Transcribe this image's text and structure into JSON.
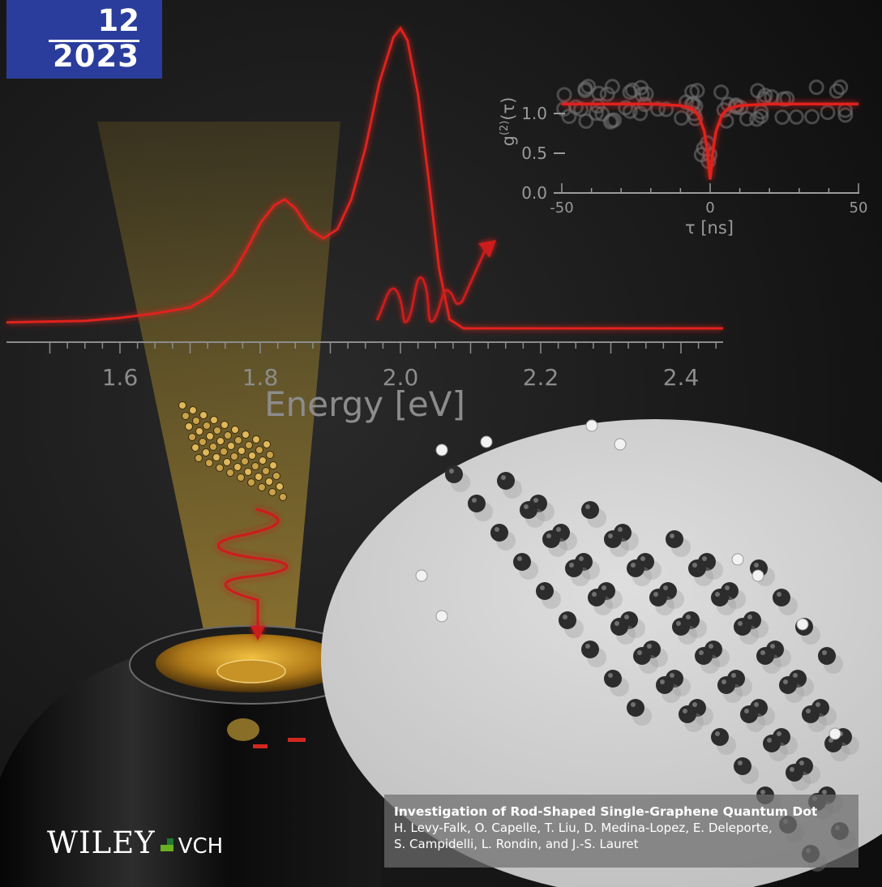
{
  "issue": {
    "number": "12",
    "year": "2023"
  },
  "colors": {
    "badge": "#2a3d9c",
    "curve": "#e0201c",
    "logo_green": "#6ab023",
    "logo_dark": "#1e7a2e"
  },
  "chart_data": [
    {
      "type": "line",
      "xlabel": "Energy [eV]",
      "ylabel": "",
      "xlim": [
        1.5,
        2.48
      ],
      "xticks": [
        "1.6",
        "1.8",
        "2.0",
        "2.2",
        "2.4"
      ],
      "series": [
        {
          "x": [
            1.5,
            1.55,
            1.6,
            1.65,
            1.7,
            1.73,
            1.76,
            1.78,
            1.8,
            1.82,
            1.835,
            1.85,
            1.87,
            1.89,
            1.91,
            1.93,
            1.95,
            1.97,
            1.99,
            2.0,
            2.01,
            2.025,
            2.04,
            2.055,
            2.07,
            2.09,
            2.12,
            2.2,
            2.3,
            2.4,
            2.47
          ],
          "y": [
            0.02,
            0.025,
            0.035,
            0.05,
            0.07,
            0.11,
            0.18,
            0.26,
            0.35,
            0.41,
            0.43,
            0.4,
            0.33,
            0.3,
            0.33,
            0.43,
            0.6,
            0.82,
            0.97,
            1.0,
            0.96,
            0.78,
            0.5,
            0.2,
            0.03,
            0.0,
            0.0,
            0.0,
            0.0,
            0.0,
            0.0
          ]
        }
      ]
    },
    {
      "type": "line",
      "xlabel": "τ [ns]",
      "ylabel": "g(2)(τ)",
      "xlim": [
        -50,
        50
      ],
      "ylim": [
        0.0,
        1.4
      ],
      "xticks": [
        "-50",
        "0",
        "50"
      ],
      "yticks": [
        "0.0",
        "0.5",
        "1.0"
      ],
      "series": [
        {
          "x": [
            -50,
            -20,
            -10,
            -6,
            -4,
            -2,
            -1,
            0,
            1,
            2,
            4,
            6,
            10,
            20,
            50
          ],
          "y": [
            1.12,
            1.12,
            1.1,
            1.06,
            0.98,
            0.78,
            0.55,
            0.17,
            0.55,
            0.78,
            0.98,
            1.06,
            1.1,
            1.12,
            1.12
          ]
        }
      ]
    }
  ],
  "article": {
    "title": "Investigation of Rod-Shaped Single-Graphene Quantum Dot",
    "authors_line1": "H. Levy-Falk, O. Capelle, T. Liu, D. Medina-Lopez, E. Deleporte,",
    "authors_line2": "S. Campidelli, L. Rondin, and J.-S. Lauret"
  },
  "publisher": {
    "name": "WILEY",
    "suffix": "VCH"
  }
}
